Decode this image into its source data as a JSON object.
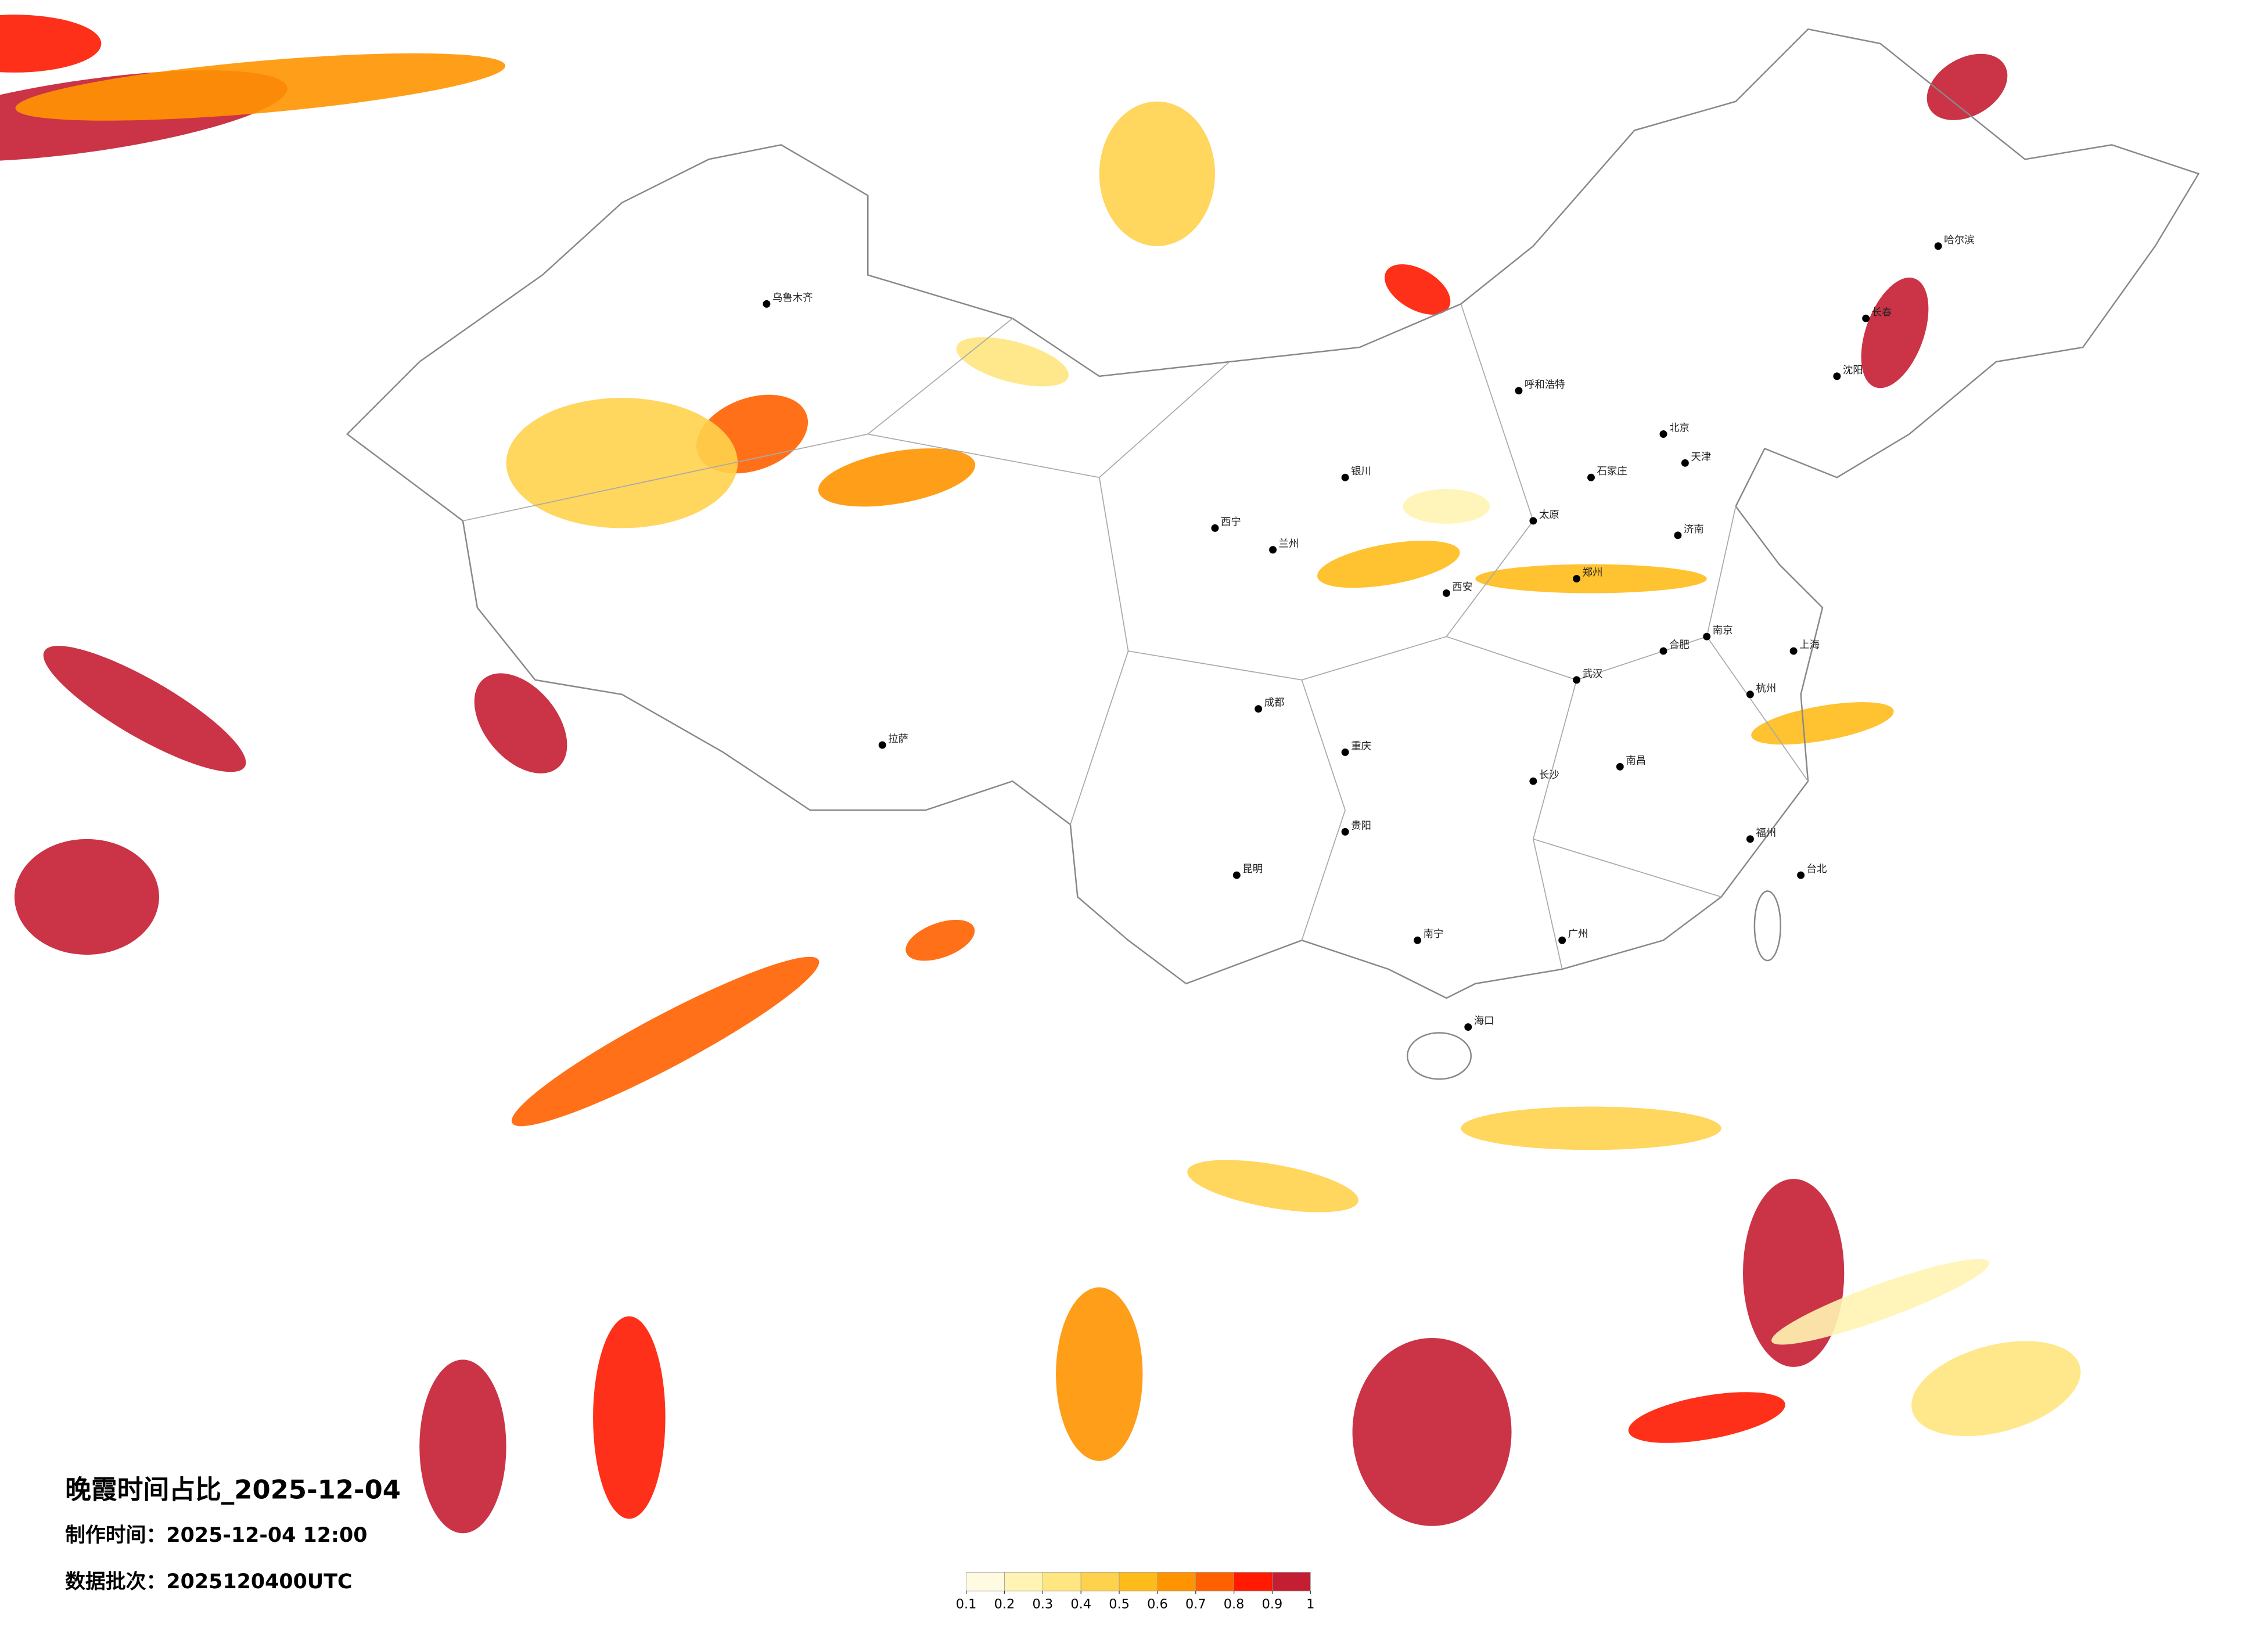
{
  "map": {
    "title": "晚霞时间占比_2025-12-04",
    "made_label": "制作时间：",
    "made_time": "2025-12-04 12:00",
    "batch_label": "数据批次：",
    "batch": "2025120400UTC",
    "colorbar": {
      "ticks": [
        0.1,
        0.2,
        0.3,
        0.4,
        0.5,
        0.6,
        0.7,
        0.8,
        0.9,
        1
      ],
      "colors": [
        "#fffbe3",
        "#fff4b3",
        "#ffe680",
        "#ffd24d",
        "#ffbb1a",
        "#ff9400",
        "#ff6000",
        "#ff1a00",
        "#c41e32"
      ]
    },
    "patches": [
      0.95,
      0.85,
      0.6,
      0.4,
      0.7,
      0.45,
      0.95,
      0.9,
      0.65,
      0.35,
      0.55,
      0.25,
      0.95,
      0.85,
      0.75,
      0.95,
      0.95,
      0.8,
      0.9,
      0.5,
      0.3,
      0.95,
      0.85,
      0.65,
      0.4,
      0.75,
      0.95,
      0.25,
      0.45,
      0.55
    ],
    "cities": [
      "北京",
      "天津",
      "石家庄",
      "太原",
      "呼和浩特",
      "沈阳",
      "长春",
      "哈尔滨",
      "济南",
      "郑州",
      "西安",
      "兰州",
      "西宁",
      "银川",
      "乌鲁木齐",
      "拉萨",
      "成都",
      "重庆",
      "武汉",
      "长沙",
      "南昌",
      "杭州",
      "上海",
      "南京",
      "合肥",
      "福州",
      "广州",
      "南宁",
      "贵阳",
      "昆明",
      "海口",
      "台北"
    ]
  }
}
